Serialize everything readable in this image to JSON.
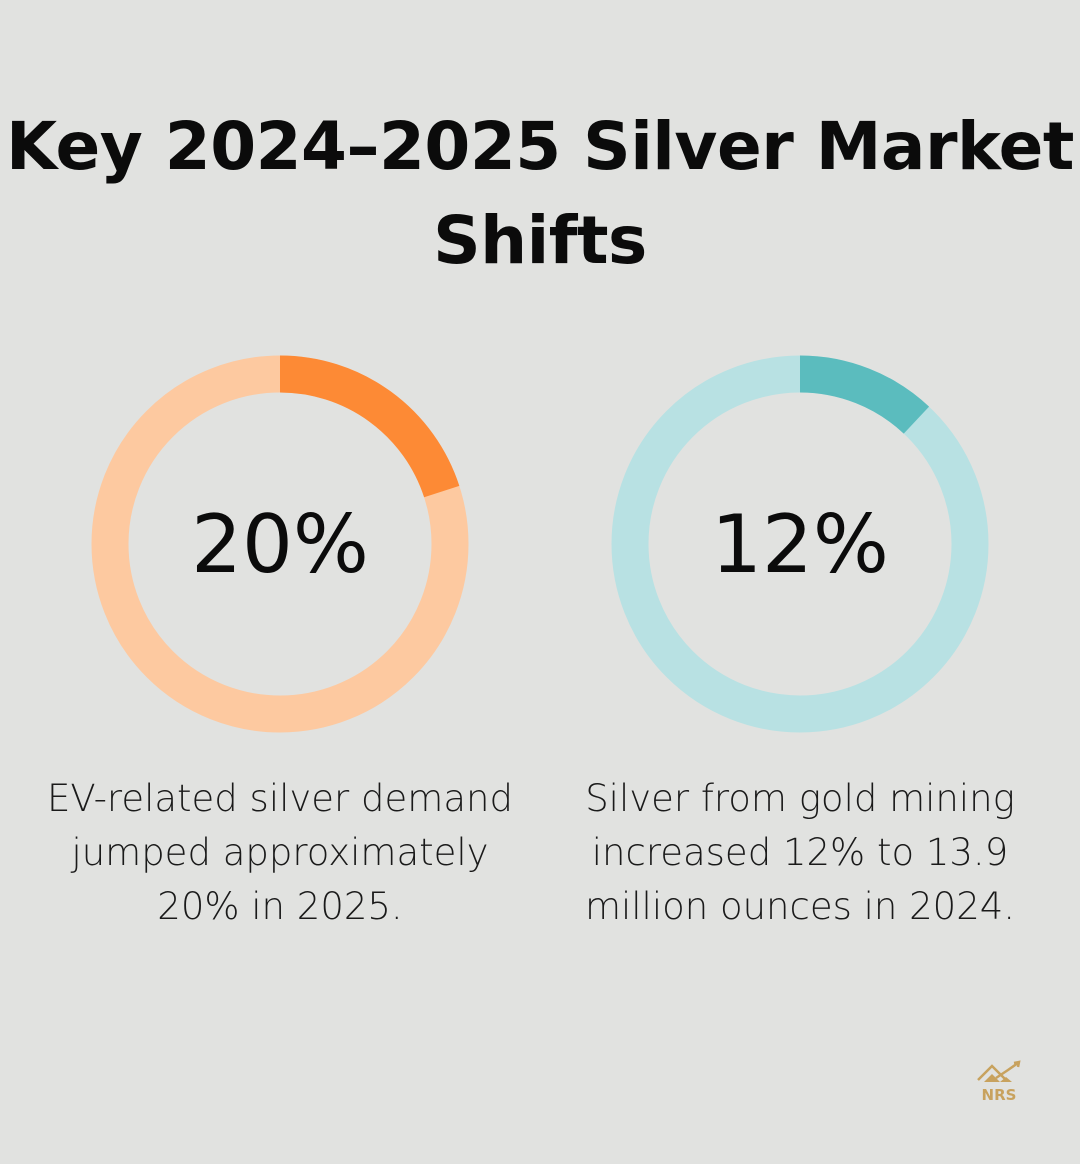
{
  "chart_data": [
    {
      "type": "pie",
      "variant": "donut",
      "value": 20,
      "max": 100,
      "label": "20%",
      "caption": "EV-related silver demand jumped approximately 20% in 2025.",
      "color": "#fd8a35",
      "track_color": "#fdc9a0"
    },
    {
      "type": "pie",
      "variant": "donut",
      "value": 12,
      "max": 100,
      "label": "12%",
      "caption": "Silver from gold mining increased 12% to 13.9 million ounces in 2024.",
      "color": "#5bbcbe",
      "track_color": "#b8e1e3"
    }
  ],
  "title": "Key 2024–2025 Silver Market Shifts",
  "logo": {
    "text": "NRS",
    "color": "#c8a25e"
  }
}
